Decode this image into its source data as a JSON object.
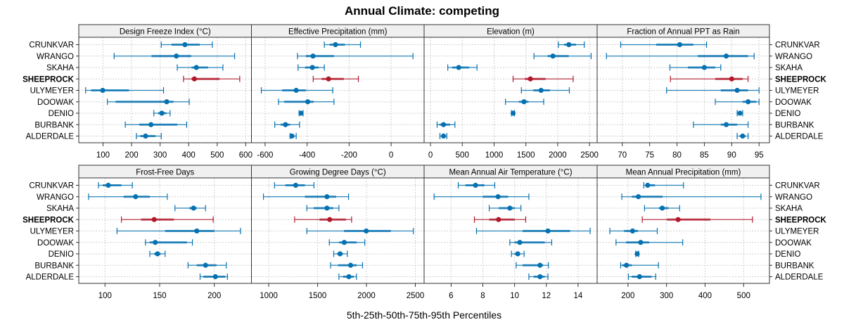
{
  "chart_data": {
    "type": "dot-interval",
    "title": "Annual Climate: competing",
    "xlabel": "5th-25th-50th-75th-95th Percentiles",
    "ylabel": "",
    "grid": true,
    "highlight_site": "SHEEPROCK",
    "colors": {
      "default": "#0571b0",
      "highlight": "#b2182b",
      "strip": "#f0f0f0"
    },
    "sites": [
      "CRUNKVAR",
      "WRANGO",
      "SKAHA",
      "SHEEPROCK",
      "ULYMEYER",
      "DOOWAK",
      "DENIO",
      "BURBANK",
      "ALDERDALE"
    ],
    "percentile_keys": [
      "p5",
      "p25",
      "p50",
      "p75",
      "p95"
    ],
    "panels": [
      {
        "title": "Design Freeze Index (°C)",
        "xlim": [
          15,
          620
        ],
        "ticks": [
          100,
          200,
          300,
          400,
          500,
          600
        ],
        "values": [
          [
            304,
            340,
            387,
            439,
            483
          ],
          [
            139,
            270,
            357,
            409,
            561
          ],
          [
            360,
            410,
            427,
            468,
            520
          ],
          [
            382,
            410,
            420,
            508,
            579
          ],
          [
            39,
            58,
            99,
            191,
            312
          ],
          [
            115,
            144,
            323,
            347,
            402
          ],
          [
            278,
            293,
            306,
            322,
            335
          ],
          [
            178,
            227,
            268,
            360,
            393
          ],
          [
            217,
            230,
            249,
            284,
            304
          ]
        ]
      },
      {
        "title": "Effective Precipitation (mm)",
        "xlim": [
          -665,
          157
        ],
        "ticks": [
          -600,
          -400,
          -200,
          0
        ],
        "values": [
          [
            -318,
            -293,
            -265,
            -220,
            -146
          ],
          [
            -446,
            -406,
            -372,
            -272,
            104
          ],
          [
            -443,
            -410,
            -375,
            -345,
            -318
          ],
          [
            -371,
            -331,
            -298,
            -225,
            -156
          ],
          [
            -618,
            -519,
            -452,
            -406,
            -278
          ],
          [
            -536,
            -509,
            -397,
            -369,
            -272
          ],
          [
            -438,
            -434,
            -429,
            -424,
            -419
          ],
          [
            -554,
            -526,
            -503,
            -481,
            -436
          ],
          [
            -481,
            -478,
            -472,
            -461,
            -452
          ]
        ]
      },
      {
        "title": "Elevation (m)",
        "xlim": [
          -100,
          2620
        ],
        "ticks": [
          0,
          500,
          1000,
          1500,
          2000,
          2500
        ],
        "values": [
          [
            2011,
            2101,
            2175,
            2287,
            2418
          ],
          [
            1627,
            1840,
            1925,
            2175,
            2526
          ],
          [
            272,
            340,
            444,
            608,
            731
          ],
          [
            1299,
            1485,
            1571,
            1810,
            2243
          ],
          [
            1429,
            1616,
            1739,
            1877,
            2183
          ],
          [
            1179,
            1392,
            1470,
            1541,
            1780
          ],
          [
            1272,
            1284,
            1299,
            1310,
            1321
          ],
          [
            104,
            142,
            205,
            310,
            384
          ],
          [
            149,
            168,
            205,
            228,
            257
          ]
        ]
      },
      {
        "title": "Fraction of Annual PPT as Rain",
        "xlim": [
          65.4,
          96.9
        ],
        "ticks": [
          70,
          75,
          80,
          85,
          90,
          95
        ],
        "values": [
          [
            69.7,
            76.2,
            80.5,
            83.0,
            85.4
          ],
          [
            67.1,
            83.8,
            89.0,
            93.0,
            94.1
          ],
          [
            78.7,
            82.0,
            85.0,
            87.0,
            88.0
          ],
          [
            78.8,
            87.0,
            90.0,
            92.0,
            93.0
          ],
          [
            78.1,
            88.0,
            91.0,
            93.0,
            95.0
          ],
          [
            87.0,
            92.0,
            93.0,
            94.5,
            95.0
          ],
          [
            91.0,
            91.2,
            91.5,
            91.7,
            92.0
          ],
          [
            83.0,
            88.0,
            89.0,
            91.0,
            93.0
          ],
          [
            91.0,
            91.5,
            92.0,
            92.5,
            93.0
          ]
        ]
      },
      {
        "title": "Frost-Free Days",
        "xlim": [
          76,
          234
        ],
        "ticks": [
          100,
          150,
          200
        ],
        "values": [
          [
            94,
            98,
            103,
            115,
            125
          ],
          [
            85,
            117,
            128,
            141,
            157
          ],
          [
            164,
            177,
            181,
            184,
            192
          ],
          [
            115,
            133,
            145,
            163,
            199
          ],
          [
            111,
            155,
            184,
            200,
            224
          ],
          [
            137,
            141,
            146,
            175,
            180
          ],
          [
            141,
            145,
            148,
            151,
            155
          ],
          [
            176,
            184,
            192,
            202,
            211
          ],
          [
            187,
            190,
            201,
            210,
            212
          ]
        ]
      },
      {
        "title": "Growing Degree Days (°C)",
        "xlim": [
          823,
          2590
        ],
        "ticks": [
          1000,
          1500,
          2000,
          2500
        ],
        "values": [
          [
            1059,
            1170,
            1276,
            1370,
            1463
          ],
          [
            946,
            1370,
            1596,
            1690,
            1817
          ],
          [
            1390,
            1460,
            1596,
            1660,
            1718
          ],
          [
            1265,
            1520,
            1624,
            1790,
            1848
          ],
          [
            1390,
            1770,
            1998,
            2250,
            2480
          ],
          [
            1620,
            1720,
            1773,
            1900,
            1983
          ],
          [
            1665,
            1700,
            1730,
            1760,
            1804
          ],
          [
            1633,
            1710,
            1838,
            1900,
            1960
          ],
          [
            1718,
            1760,
            1820,
            1870,
            1898
          ]
        ]
      },
      {
        "title": "Mean Annual Air Temperature (°C)",
        "xlim": [
          4.3,
          15.2
        ],
        "ticks": [
          6,
          8,
          10,
          12,
          14
        ],
        "values": [
          [
            6.45,
            6.9,
            7.54,
            8.1,
            8.75
          ],
          [
            4.93,
            8.0,
            8.96,
            9.6,
            10.9
          ],
          [
            8.4,
            9.0,
            9.7,
            10.0,
            10.4
          ],
          [
            7.47,
            8.4,
            8.99,
            10.0,
            10.7
          ],
          [
            7.6,
            10.5,
            12.1,
            13.5,
            14.76
          ],
          [
            9.7,
            10.0,
            10.33,
            11.9,
            12.34
          ],
          [
            9.8,
            10.0,
            10.2,
            10.35,
            10.6
          ],
          [
            10.1,
            10.5,
            11.6,
            11.8,
            12.13
          ],
          [
            10.9,
            11.2,
            11.6,
            11.9,
            12.1
          ]
        ]
      },
      {
        "title": "Mean Annual Precipitation (mm)",
        "xlim": [
          120,
          567
        ],
        "ticks": [
          200,
          300,
          400,
          500
        ],
        "values": [
          [
            241,
            245,
            251,
            270,
            344
          ],
          [
            184,
            210,
            227,
            290,
            545
          ],
          [
            243,
            280,
            289,
            305,
            334
          ],
          [
            237,
            301,
            330,
            414,
            523
          ],
          [
            153,
            190,
            212,
            226,
            276
          ],
          [
            169,
            195,
            233,
            255,
            342
          ],
          [
            220,
            221,
            224,
            226,
            228
          ],
          [
            181,
            185,
            196,
            210,
            279
          ],
          [
            201,
            210,
            230,
            261,
            272
          ]
        ]
      }
    ]
  }
}
